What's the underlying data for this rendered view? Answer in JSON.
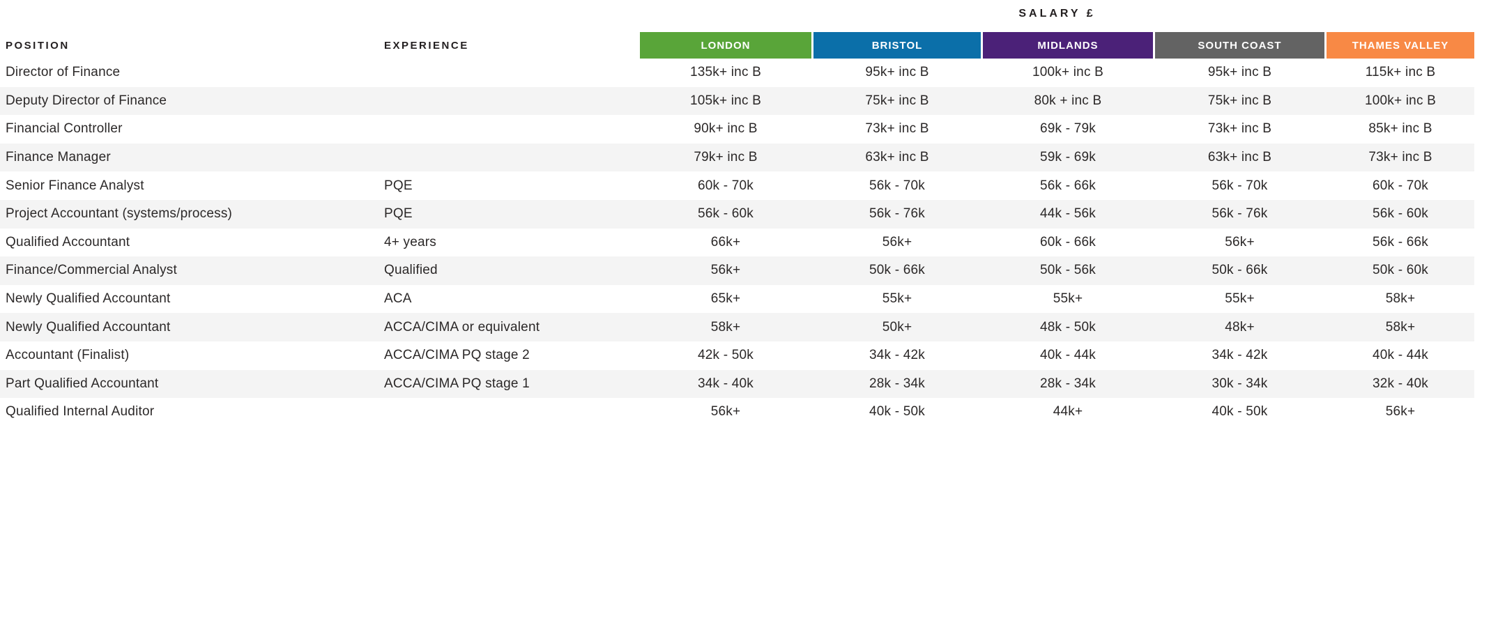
{
  "chart_data": {
    "type": "table",
    "title": "SALARY £",
    "headers": {
      "position": "POSITION",
      "experience": "EXPERIENCE"
    },
    "regions": [
      {
        "label": "LONDON",
        "color": "#59A539"
      },
      {
        "label": "BRISTOL",
        "color": "#0B6FA9"
      },
      {
        "label": "MIDLANDS",
        "color": "#4B2178"
      },
      {
        "label": "SOUTH COAST",
        "color": "#636363"
      },
      {
        "label": "THAMES VALLEY",
        "color": "#F88945"
      }
    ],
    "style": {
      "stripe_color": "#f4f4f4",
      "text_color": "#2b2828",
      "header_text_color": "#ffffff"
    },
    "rows": [
      {
        "position": "Director of Finance",
        "experience": "",
        "salaries": [
          "135k+ inc B",
          "95k+ inc B",
          "100k+ inc B",
          "95k+ inc B",
          "115k+ inc B"
        ]
      },
      {
        "position": "Deputy Director of Finance",
        "experience": "",
        "salaries": [
          "105k+ inc B",
          "75k+ inc B",
          "80k + inc B",
          "75k+ inc B",
          "100k+ inc B"
        ]
      },
      {
        "position": "Financial Controller",
        "experience": "",
        "salaries": [
          "90k+ inc B",
          "73k+ inc B",
          "69k - 79k",
          "73k+ inc B",
          "85k+ inc B"
        ]
      },
      {
        "position": "Finance Manager",
        "experience": "",
        "salaries": [
          "79k+ inc B",
          "63k+ inc B",
          "59k - 69k",
          "63k+ inc B",
          "73k+ inc B"
        ]
      },
      {
        "position": "Senior Finance Analyst",
        "experience": "PQE",
        "salaries": [
          "60k - 70k",
          "56k - 70k",
          "56k - 66k",
          "56k - 70k",
          "60k - 70k"
        ]
      },
      {
        "position": "Project Accountant (systems/process)",
        "experience": "PQE",
        "salaries": [
          "56k - 60k",
          "56k - 76k",
          "44k - 56k",
          "56k - 76k",
          "56k - 60k"
        ]
      },
      {
        "position": "Qualified Accountant",
        "experience": "4+ years",
        "salaries": [
          "66k+",
          "56k+",
          "60k - 66k",
          "56k+",
          "56k - 66k"
        ]
      },
      {
        "position": "Finance/Commercial Analyst",
        "experience": "Qualified",
        "salaries": [
          "56k+",
          "50k - 66k",
          "50k - 56k",
          "50k - 66k",
          "50k - 60k"
        ]
      },
      {
        "position": "Newly Qualified Accountant",
        "experience": "ACA",
        "salaries": [
          "65k+",
          "55k+",
          "55k+",
          "55k+",
          "58k+"
        ]
      },
      {
        "position": "Newly Qualified Accountant",
        "experience": "ACCA/CIMA or equivalent",
        "salaries": [
          "58k+",
          "50k+",
          "48k - 50k",
          "48k+",
          "58k+"
        ]
      },
      {
        "position": "Accountant (Finalist)",
        "experience": "ACCA/CIMA PQ stage 2",
        "salaries": [
          "42k - 50k",
          "34k - 42k",
          "40k - 44k",
          "34k - 42k",
          "40k - 44k"
        ]
      },
      {
        "position": "Part Qualified Accountant",
        "experience": "ACCA/CIMA PQ stage 1",
        "salaries": [
          "34k - 40k",
          "28k - 34k",
          "28k - 34k",
          "30k - 34k",
          "32k - 40k"
        ]
      },
      {
        "position": "Qualified Internal Auditor",
        "experience": "",
        "salaries": [
          "56k+",
          "40k - 50k",
          "44k+",
          "40k - 50k",
          "56k+"
        ]
      }
    ]
  }
}
